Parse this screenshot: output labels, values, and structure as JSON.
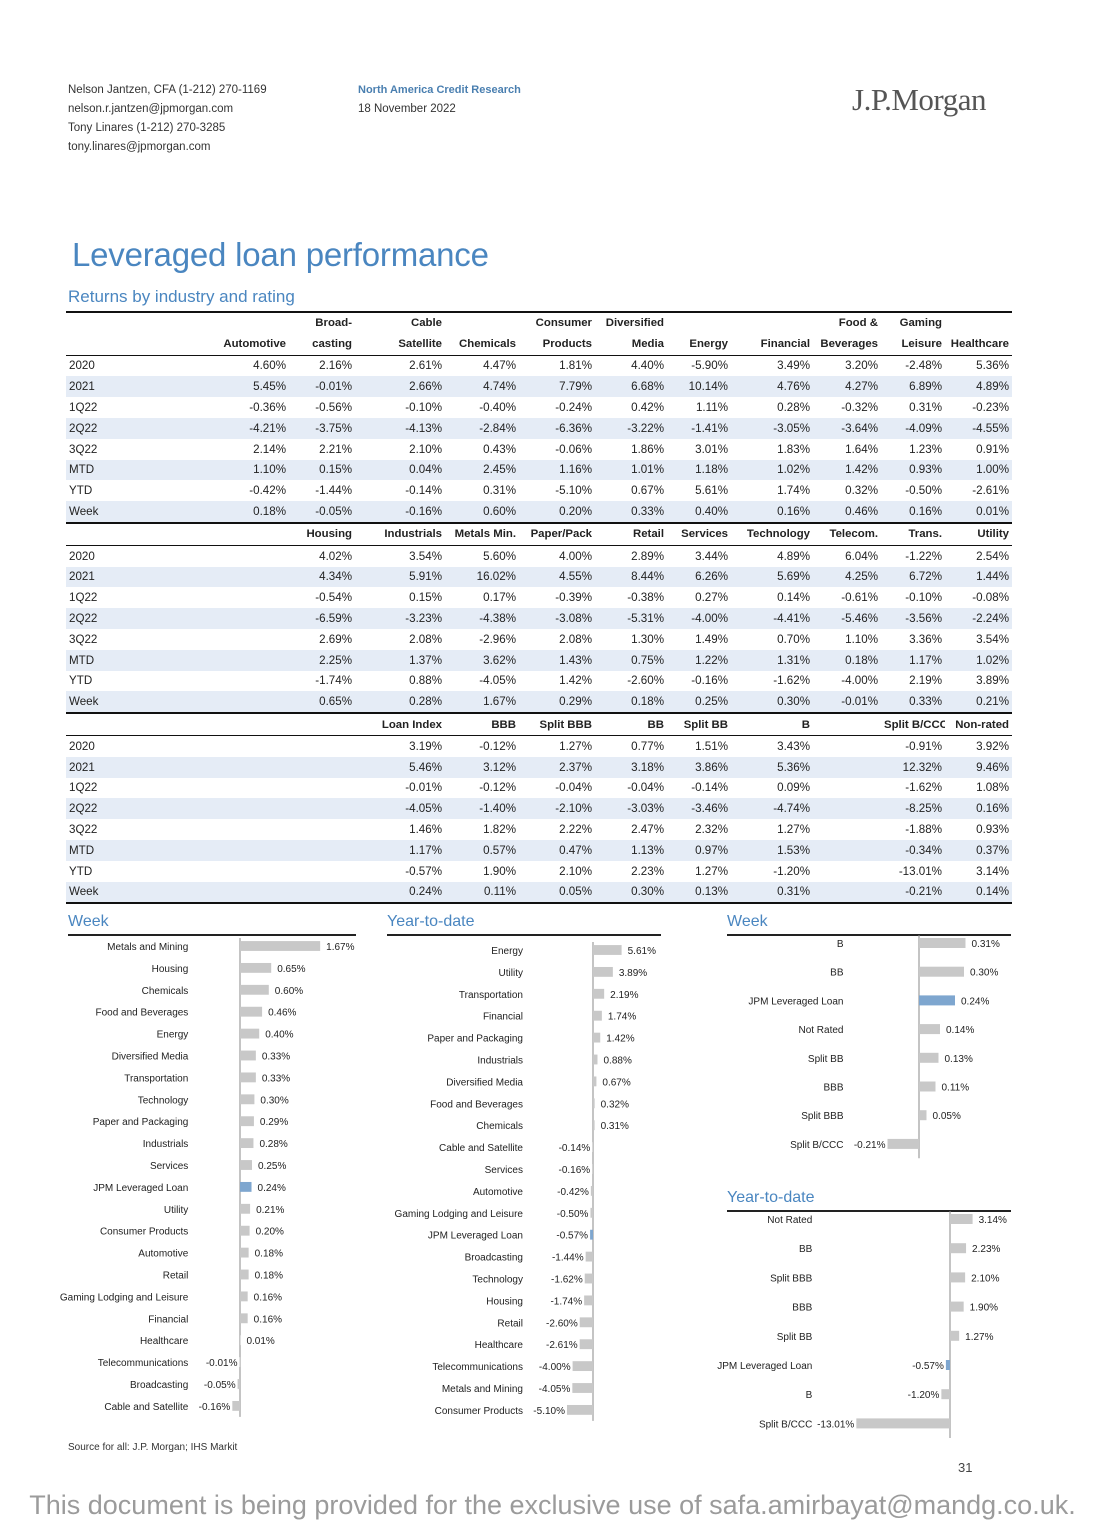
{
  "header": {
    "authors": [
      "Nelson Jantzen, CFA (1-212) 270-1169",
      "nelson.r.jantzen@jpmorgan.com",
      "Tony Linares (1-212) 270-3285",
      "tony.linares@jpmorgan.com"
    ],
    "dept": "North America Credit Research",
    "date": "18 November 2022",
    "logo": "J.P.Morgan"
  },
  "title": "Leveraged loan performance",
  "subtitle": "Returns by industry and rating",
  "table1": {
    "headers_top": [
      "",
      "",
      "Broad-",
      "Cable",
      "",
      "Consumer",
      "Diversified",
      "",
      "",
      "Food &",
      "Gaming",
      ""
    ],
    "headers": [
      "",
      "Automotive",
      "casting",
      "Satellite",
      "Chemicals",
      "Products",
      "Media",
      "Energy",
      "Financial",
      "Beverages",
      "Leisure",
      "Healthcare"
    ],
    "rows": [
      [
        "2020",
        "4.60%",
        "2.16%",
        "2.61%",
        "4.47%",
        "1.81%",
        "4.40%",
        "-5.90%",
        "3.49%",
        "3.20%",
        "-2.48%",
        "5.36%"
      ],
      [
        "2021",
        "5.45%",
        "-0.01%",
        "2.66%",
        "4.74%",
        "7.79%",
        "6.68%",
        "10.14%",
        "4.76%",
        "4.27%",
        "6.89%",
        "4.89%"
      ],
      [
        "1Q22",
        "-0.36%",
        "-0.56%",
        "-0.10%",
        "-0.40%",
        "-0.24%",
        "0.42%",
        "1.11%",
        "0.28%",
        "-0.32%",
        "0.31%",
        "-0.23%"
      ],
      [
        "2Q22",
        "-4.21%",
        "-3.75%",
        "-4.13%",
        "-2.84%",
        "-6.36%",
        "-3.22%",
        "-1.41%",
        "-3.05%",
        "-3.64%",
        "-4.09%",
        "-4.55%"
      ],
      [
        "3Q22",
        "2.14%",
        "2.21%",
        "2.10%",
        "0.43%",
        "-0.06%",
        "1.86%",
        "3.01%",
        "1.83%",
        "1.64%",
        "1.23%",
        "0.91%"
      ],
      [
        "MTD",
        "1.10%",
        "0.15%",
        "0.04%",
        "2.45%",
        "1.16%",
        "1.01%",
        "1.18%",
        "1.02%",
        "1.42%",
        "0.93%",
        "1.00%"
      ],
      [
        "YTD",
        "-0.42%",
        "-1.44%",
        "-0.14%",
        "0.31%",
        "-5.10%",
        "0.67%",
        "5.61%",
        "1.74%",
        "0.32%",
        "-0.50%",
        "-2.61%"
      ],
      [
        "Week",
        "0.18%",
        "-0.05%",
        "-0.16%",
        "0.60%",
        "0.20%",
        "0.33%",
        "0.40%",
        "0.16%",
        "0.46%",
        "0.16%",
        "0.01%"
      ]
    ]
  },
  "table2": {
    "headers": [
      "",
      "",
      "Housing",
      "Industrials",
      "Metals Min.",
      "Paper/Pack",
      "Retail",
      "Services",
      "Technology",
      "Telecom.",
      "Trans.",
      "Utility"
    ],
    "rows": [
      [
        "2020",
        "",
        "4.02%",
        "3.54%",
        "5.60%",
        "4.00%",
        "2.89%",
        "3.44%",
        "4.89%",
        "6.04%",
        "-1.22%",
        "2.54%"
      ],
      [
        "2021",
        "",
        "4.34%",
        "5.91%",
        "16.02%",
        "4.55%",
        "8.44%",
        "6.26%",
        "5.69%",
        "4.25%",
        "6.72%",
        "1.44%"
      ],
      [
        "1Q22",
        "",
        "-0.54%",
        "0.15%",
        "0.17%",
        "-0.39%",
        "-0.38%",
        "0.27%",
        "0.14%",
        "-0.61%",
        "-0.10%",
        "-0.08%"
      ],
      [
        "2Q22",
        "",
        "-6.59%",
        "-3.23%",
        "-4.38%",
        "-3.08%",
        "-5.31%",
        "-4.00%",
        "-4.41%",
        "-5.46%",
        "-3.56%",
        "-2.24%"
      ],
      [
        "3Q22",
        "",
        "2.69%",
        "2.08%",
        "-2.96%",
        "2.08%",
        "1.30%",
        "1.49%",
        "0.70%",
        "1.10%",
        "3.36%",
        "3.54%"
      ],
      [
        "MTD",
        "",
        "2.25%",
        "1.37%",
        "3.62%",
        "1.43%",
        "0.75%",
        "1.22%",
        "1.31%",
        "0.18%",
        "1.17%",
        "1.02%"
      ],
      [
        "YTD",
        "",
        "-1.74%",
        "0.88%",
        "-4.05%",
        "1.42%",
        "-2.60%",
        "-0.16%",
        "-1.62%",
        "-4.00%",
        "2.19%",
        "3.89%"
      ],
      [
        "Week",
        "",
        "0.65%",
        "0.28%",
        "1.67%",
        "0.29%",
        "0.18%",
        "0.25%",
        "0.30%",
        "-0.01%",
        "0.33%",
        "0.21%"
      ]
    ]
  },
  "table3": {
    "headers": [
      "",
      "",
      "",
      "Loan Index",
      "BBB",
      "Split BBB",
      "BB",
      "Split BB",
      "B",
      "",
      "Split B/CCC",
      "Non-rated"
    ],
    "rows": [
      [
        "2020",
        "",
        "",
        "3.19%",
        "-0.12%",
        "1.27%",
        "0.77%",
        "1.51%",
        "3.43%",
        "",
        "-0.91%",
        "3.92%"
      ],
      [
        "2021",
        "",
        "",
        "5.46%",
        "3.12%",
        "2.37%",
        "3.18%",
        "3.86%",
        "5.36%",
        "",
        "12.32%",
        "9.46%"
      ],
      [
        "1Q22",
        "",
        "",
        "-0.01%",
        "-0.12%",
        "-0.04%",
        "-0.04%",
        "-0.14%",
        "0.09%",
        "",
        "-1.62%",
        "1.08%"
      ],
      [
        "2Q22",
        "",
        "",
        "-4.05%",
        "-1.40%",
        "-2.10%",
        "-3.03%",
        "-3.46%",
        "-4.74%",
        "",
        "-8.25%",
        "0.16%"
      ],
      [
        "3Q22",
        "",
        "",
        "1.46%",
        "1.82%",
        "2.22%",
        "2.47%",
        "2.32%",
        "1.27%",
        "",
        "-1.88%",
        "0.93%"
      ],
      [
        "MTD",
        "",
        "",
        "1.17%",
        "0.57%",
        "0.47%",
        "1.13%",
        "0.97%",
        "1.53%",
        "",
        "-0.34%",
        "0.37%"
      ],
      [
        "YTD",
        "",
        "",
        "-0.57%",
        "1.90%",
        "2.10%",
        "2.23%",
        "1.27%",
        "-1.20%",
        "",
        "-13.01%",
        "3.14%"
      ],
      [
        "Week",
        "",
        "",
        "0.24%",
        "0.11%",
        "0.05%",
        "0.30%",
        "0.13%",
        "0.31%",
        "",
        "-0.21%",
        "0.14%"
      ]
    ]
  },
  "chart_data": [
    {
      "type": "bar",
      "orientation": "horizontal",
      "title": "Week",
      "categories": [
        "Metals and Mining",
        "Housing",
        "Chemicals",
        "Food and Beverages",
        "Energy",
        "Diversified Media",
        "Transportation",
        "Technology",
        "Paper and Packaging",
        "Industrials",
        "Services",
        "JPM Leveraged Loan",
        "Utility",
        "Consumer Products",
        "Automotive",
        "Retail",
        "Gaming Lodging and Leisure",
        "Financial",
        "Healthcare",
        "Telecommunications",
        "Broadcasting",
        "Cable and Satellite"
      ],
      "values": [
        1.67,
        0.65,
        0.6,
        0.46,
        0.4,
        0.33,
        0.33,
        0.3,
        0.29,
        0.28,
        0.25,
        0.24,
        0.21,
        0.2,
        0.18,
        0.18,
        0.16,
        0.16,
        0.01,
        -0.01,
        -0.05,
        -0.16
      ],
      "labels": [
        "1.67%",
        "0.65%",
        "0.60%",
        "0.46%",
        "0.40%",
        "0.33%",
        "0.33%",
        "0.30%",
        "0.29%",
        "0.28%",
        "0.25%",
        "0.24%",
        "0.21%",
        "0.20%",
        "0.18%",
        "0.18%",
        "0.16%",
        "0.16%",
        "0.01%",
        "-0.01%",
        "-0.05%",
        "-0.16%"
      ],
      "highlight": "JPM Leveraged Loan",
      "bar_color": "#c8c8c8",
      "highlight_color": "#7ea6cf"
    },
    {
      "type": "bar",
      "orientation": "horizontal",
      "title": "Year-to-date",
      "categories": [
        "Energy",
        "Utility",
        "Transportation",
        "Financial",
        "Paper and Packaging",
        "Industrials",
        "Diversified Media",
        "Food and Beverages",
        "Chemicals",
        "Cable and Satellite",
        "Services",
        "Automotive",
        "Gaming Lodging and Leisure",
        "JPM Leveraged Loan",
        "Broadcasting",
        "Technology",
        "Housing",
        "Retail",
        "Healthcare",
        "Telecommunications",
        "Metals and Mining",
        "Consumer Products"
      ],
      "values": [
        5.61,
        3.89,
        2.19,
        1.74,
        1.42,
        0.88,
        0.67,
        0.32,
        0.31,
        -0.14,
        -0.16,
        -0.42,
        -0.5,
        -0.57,
        -1.44,
        -1.62,
        -1.74,
        -2.6,
        -2.61,
        -4.0,
        -4.05,
        -5.1
      ],
      "labels": [
        "5.61%",
        "3.89%",
        "2.19%",
        "1.74%",
        "1.42%",
        "0.88%",
        "0.67%",
        "0.32%",
        "0.31%",
        "-0.14%",
        "-0.16%",
        "-0.42%",
        "-0.50%",
        "-0.57%",
        "-1.44%",
        "-1.62%",
        "-1.74%",
        "-2.60%",
        "-2.61%",
        "-4.00%",
        "-4.05%",
        "-5.10%"
      ],
      "highlight": "JPM Leveraged Loan",
      "bar_color": "#c8c8c8",
      "highlight_color": "#7ea6cf"
    },
    {
      "type": "bar",
      "orientation": "horizontal",
      "title": "Week",
      "categories": [
        "B",
        "BB",
        "JPM Leveraged Loan",
        "Not Rated",
        "Split BB",
        "BBB",
        "Split BBB",
        "Split B/CCC"
      ],
      "values": [
        0.31,
        0.3,
        0.24,
        0.14,
        0.13,
        0.11,
        0.05,
        -0.21
      ],
      "labels": [
        "0.31%",
        "0.30%",
        "0.24%",
        "0.14%",
        "0.13%",
        "0.11%",
        "0.05%",
        "-0.21%"
      ],
      "highlight": "JPM Leveraged Loan",
      "bar_color": "#c8c8c8",
      "highlight_color": "#7ea6cf"
    },
    {
      "type": "bar",
      "orientation": "horizontal",
      "title": "Year-to-date",
      "categories": [
        "Not Rated",
        "BB",
        "Split BBB",
        "BBB",
        "Split BB",
        "JPM Leveraged Loan",
        "B",
        "Split B/CCC"
      ],
      "values": [
        3.14,
        2.23,
        2.1,
        1.9,
        1.27,
        -0.57,
        -1.2,
        -13.01
      ],
      "labels": [
        "3.14%",
        "2.23%",
        "2.10%",
        "1.90%",
        "1.27%",
        "-0.57%",
        "-1.20%",
        "-13.01%"
      ],
      "highlight": "JPM Leveraged Loan",
      "bar_color": "#c8c8c8",
      "highlight_color": "#7ea6cf"
    }
  ],
  "source": "Source for all: J.P. Morgan; IHS Markit",
  "page_number": "31",
  "footer": "This document is being provided for the exclusive use of safa.amirbayat@mandg.co.uk."
}
